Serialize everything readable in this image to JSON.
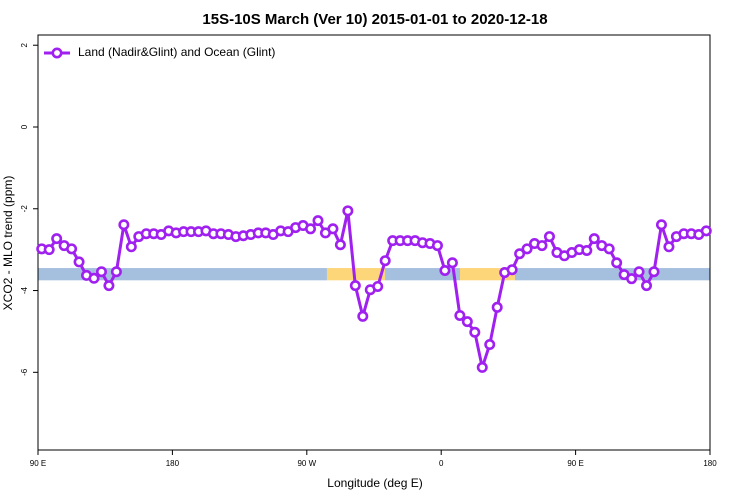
{
  "chart_data": {
    "type": "line",
    "title": "15S-10S March (Ver 10)   2015-01-01 to 2020-12-18",
    "x_label": "Longitude (deg E)",
    "y_label": "XCO2 - MLO trend (ppm)",
    "xlim": [
      90,
      540
    ],
    "ylim": [
      -7.9,
      2.25
    ],
    "xticks": [
      {
        "value": 90,
        "label": "90 E"
      },
      {
        "value": 180,
        "label": "180"
      },
      {
        "value": 270,
        "label": "90 W"
      },
      {
        "value": 360,
        "label": "0"
      },
      {
        "value": 450,
        "label": "90 E"
      },
      {
        "value": 540,
        "label": "180"
      }
    ],
    "yticks": [
      2,
      0,
      -2,
      -4,
      -6
    ],
    "legend_position": "top-left",
    "surface_band": {
      "ylim": [
        -3.75,
        -3.45
      ],
      "segments": [
        {
          "xlim": [
            90,
            283.5
          ],
          "color": "#a5bfdf"
        },
        {
          "xlim": [
            283.5,
            322.4
          ],
          "color": "#fdd67a"
        },
        {
          "xlim": [
            322.4,
            372.6
          ],
          "color": "#a5bfdf"
        },
        {
          "xlim": [
            372.6,
            409.4
          ],
          "color": "#fdd67a"
        },
        {
          "xlim": [
            409.4,
            540
          ],
          "color": "#a5bfdf"
        }
      ]
    },
    "x": [
      92.5,
      97.5,
      102.5,
      107.5,
      112.5,
      117.5,
      122.5,
      127.5,
      132.5,
      137.5,
      142.5,
      147.5,
      152.5,
      157.5,
      162.5,
      167.5,
      172.5,
      177.5,
      182.5,
      187.5,
      192.5,
      197.5,
      202.5,
      207.5,
      212.5,
      217.5,
      222.5,
      227.5,
      232.5,
      237.5,
      242.5,
      247.5,
      252.5,
      257.5,
      262.5,
      267.5,
      272.5,
      277.5,
      282.5,
      287.5,
      292.5,
      297.5,
      302.5,
      307.5,
      312.5,
      317.5,
      322.5,
      327.5,
      332.5,
      337.5,
      342.5,
      347.5,
      352.5,
      357.5,
      362.5,
      367.5,
      372.5,
      377.5,
      382.5,
      387.5,
      392.5,
      397.5,
      402.5,
      407.5,
      412.5,
      417.5,
      422.5,
      427.5,
      432.5,
      437.5,
      442.5,
      447.5,
      452.5,
      457.5,
      462.5,
      467.5,
      472.5,
      477.5,
      482.5,
      487.5,
      492.5,
      497.5,
      502.5,
      507.5,
      512.5,
      517.5,
      522.5,
      527.5,
      532.5,
      537.5
    ],
    "series": [
      {
        "name": "Land (Nadir&Glint) and Ocean (Glint)",
        "color": "#a020f0",
        "values": [
          -2.98,
          -3.0,
          -2.73,
          -2.9,
          -2.98,
          -3.3,
          -3.63,
          -3.7,
          -3.54,
          -3.88,
          -3.54,
          -2.39,
          -2.93,
          -2.68,
          -2.61,
          -2.61,
          -2.63,
          -2.54,
          -2.59,
          -2.56,
          -2.56,
          -2.56,
          -2.54,
          -2.61,
          -2.61,
          -2.63,
          -2.68,
          -2.66,
          -2.63,
          -2.59,
          -2.59,
          -2.63,
          -2.54,
          -2.56,
          -2.46,
          -2.41,
          -2.49,
          -2.29,
          -2.59,
          -2.49,
          -2.88,
          -2.05,
          -3.88,
          -4.63,
          -3.98,
          -3.9,
          -3.27,
          -2.78,
          -2.78,
          -2.78,
          -2.78,
          -2.83,
          -2.85,
          -2.9,
          -3.51,
          -3.32,
          -4.61,
          -4.76,
          -5.02,
          -5.88,
          -5.32,
          -4.41,
          -3.56,
          -3.49,
          -3.1,
          -2.98,
          -2.85,
          -2.9,
          -2.68,
          -3.07,
          -3.15,
          -3.07,
          -3.0,
          -3.02,
          -2.73,
          -2.9,
          -2.98,
          -3.32,
          -3.61,
          -3.71,
          -3.54,
          -3.88,
          -3.54,
          -2.39,
          -2.93,
          -2.68,
          -2.61,
          -2.61,
          -2.63,
          -2.54
        ]
      }
    ]
  }
}
